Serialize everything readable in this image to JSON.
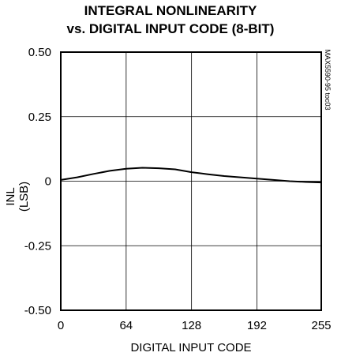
{
  "chart_data": {
    "type": "line",
    "title": "INTEGRAL NONLINEARITY",
    "subtitle": "vs. DIGITAL INPUT CODE (8-BIT)",
    "xlabel": "DIGITAL INPUT CODE",
    "ylabel": "INL (LSB)",
    "side_code": "MAX5590-95 toc03",
    "xlim": [
      0,
      255
    ],
    "ylim": [
      -0.5,
      0.5
    ],
    "x_ticks": [
      0,
      64,
      128,
      192,
      255
    ],
    "x_tick_labels": [
      "0",
      "64",
      "128",
      "192",
      "255"
    ],
    "y_ticks": [
      0.5,
      0.25,
      0,
      -0.25,
      -0.5
    ],
    "y_tick_labels": [
      "0.50",
      "0.25",
      "0",
      "-0.25",
      "-0.50"
    ],
    "grid": true,
    "series": [
      {
        "color": "#000000",
        "x": [
          0,
          16,
          32,
          48,
          64,
          80,
          96,
          112,
          128,
          144,
          160,
          176,
          192,
          208,
          224,
          240,
          255
        ],
        "y": [
          0.005,
          0.015,
          0.028,
          0.04,
          0.048,
          0.052,
          0.05,
          0.046,
          0.035,
          0.027,
          0.02,
          0.015,
          0.01,
          0.005,
          0.0,
          -0.003,
          -0.005
        ]
      }
    ]
  }
}
